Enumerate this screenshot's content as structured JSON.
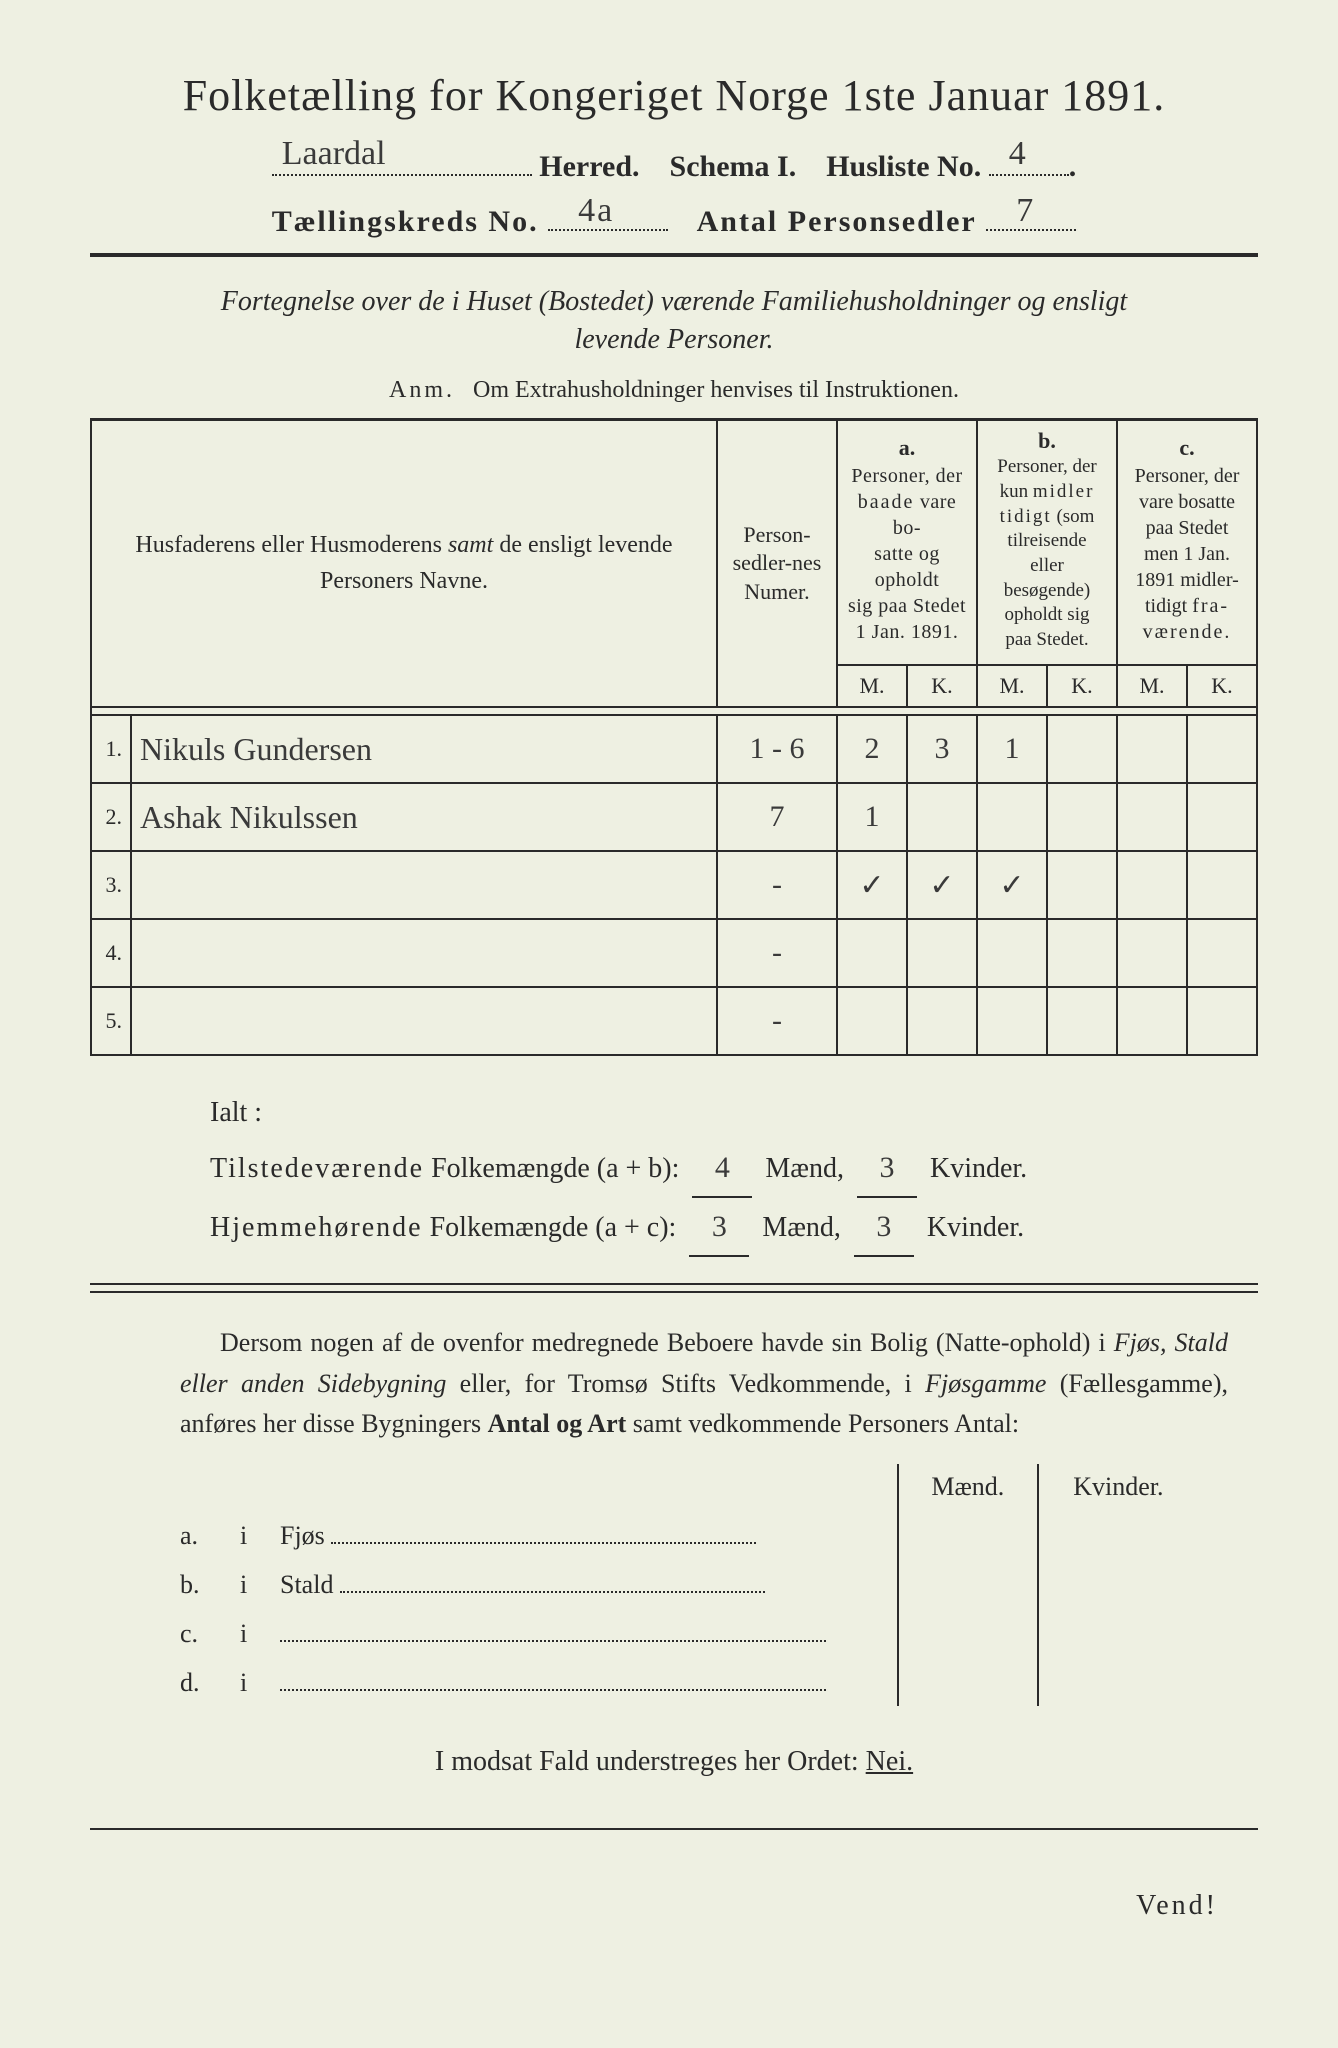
{
  "title": "Folketælling for Kongeriget Norge 1ste Januar 1891.",
  "header": {
    "herred_hand": "Laardal",
    "herred_label": "Herred.",
    "schema": "Schema I.",
    "husliste_label": "Husliste No.",
    "husliste_hand": "4",
    "line3_label1": "Tællingskreds No.",
    "kreds_hand": "4a",
    "line3_label2": "Antal Personsedler",
    "sedler_hand": "7"
  },
  "subtitle_line1": "Fortegnelse over de i Huset (Bostedet) værende Familiehusholdninger og ensligt",
  "subtitle_line2": "levende Personer.",
  "anm_prefix": "Anm.",
  "anm_text": "Om Extrahusholdninger henvises til Instruktionen.",
  "table": {
    "col_names": "Husfaderens eller Husmoderens samt de ensligt levende Personers Navne.",
    "col_nummer": "Person-sedler-nes Numer.",
    "col_a_label": "a.",
    "col_a": "Personer, der baade vare bosatte og opholdt sig paa Stedet 1 Jan. 1891.",
    "col_b_label": "b.",
    "col_b": "Personer, der kun midler tidigt (som tilreisende eller besøgende) opholdt sig paa Stedet.",
    "col_c_label": "c.",
    "col_c": "Personer, der vare bosatte paa Stedet men 1 Jan. 1891 midler-tidigt fra-værende.",
    "M": "M.",
    "K": "K.",
    "rows": [
      {
        "n": "1.",
        "name": "Nikuls Gundersen",
        "num": "1 - 6",
        "aM": "2",
        "aK": "3",
        "bM": "1",
        "bK": "",
        "cM": "",
        "cK": ""
      },
      {
        "n": "2.",
        "name": "Ashak Nikulssen",
        "num": "7",
        "aM": "1",
        "aK": "",
        "bM": "",
        "bK": "",
        "cM": "",
        "cK": ""
      },
      {
        "n": "3.",
        "name": "",
        "num": "-",
        "aM": "✓",
        "aK": "✓",
        "bM": "✓",
        "bK": "",
        "cM": "",
        "cK": ""
      },
      {
        "n": "4.",
        "name": "",
        "num": "-",
        "aM": "",
        "aK": "",
        "bM": "",
        "bK": "",
        "cM": "",
        "cK": ""
      },
      {
        "n": "5.",
        "name": "",
        "num": "-",
        "aM": "",
        "aK": "",
        "bM": "",
        "bK": "",
        "cM": "",
        "cK": ""
      }
    ]
  },
  "totals": {
    "ialt": "Ialt :",
    "line1_a": "Tilstedeværende",
    "line1_b": "Folkemængde (a + b):",
    "line1_m": "4",
    "line1_k": "3",
    "line2_a": "Hjemmehørende",
    "line2_b": "Folkemængde (a + c):",
    "line2_m": "3",
    "line2_k": "3",
    "maend": "Mænd,",
    "kvinder": "Kvinder."
  },
  "para": {
    "t1": "Dersom nogen af de ovenfor medregnede Beboere havde sin Bolig (Natte-ophold) i ",
    "t2": "Fjøs, Stald eller anden Sidebygning",
    "t3": " eller, for Tromsø Stifts Vedkommende, i ",
    "t4": "Fjøsgamme",
    "t5": " (Fællesgamme), anføres her disse Bygningers ",
    "t6": "Antal og Art",
    "t7": " samt vedkommende Personers Antal:"
  },
  "lower": {
    "maend": "Mænd.",
    "kvinder": "Kvinder.",
    "rows": [
      {
        "k": "a.",
        "i": "i",
        "label": "Fjøs"
      },
      {
        "k": "b.",
        "i": "i",
        "label": "Stald"
      },
      {
        "k": "c.",
        "i": "i",
        "label": ""
      },
      {
        "k": "d.",
        "i": "i",
        "label": ""
      }
    ]
  },
  "footer1_a": "I modsat Fald understreges her Ordet: ",
  "footer1_b": "Nei.",
  "vend": "Vend!",
  "colors": {
    "paper": "#eef0e2",
    "ink": "#2a2a2a",
    "hand": "#3a3a3a"
  }
}
